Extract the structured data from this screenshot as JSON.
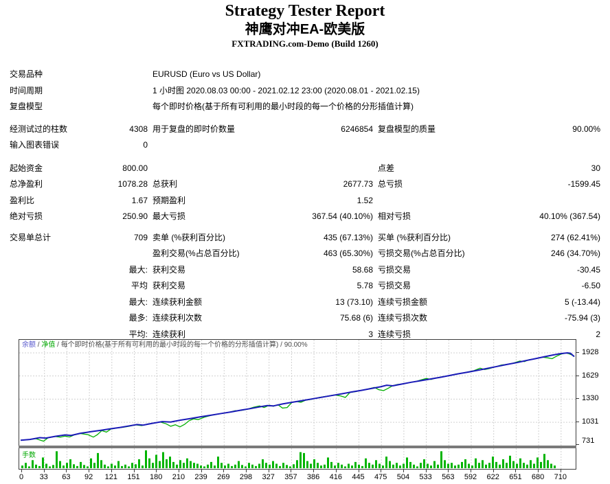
{
  "header": {
    "title": "Strategy Tester Report",
    "subtitle": "神鹰对冲EA-欧美版",
    "server": "FXTRADING.com-Demo (Build 1260)"
  },
  "stats": {
    "rows": [
      {
        "type": "wide",
        "l1": "交易品种",
        "v1": "EURUSD (Euro vs US Dollar)"
      },
      {
        "type": "wide",
        "l1": "时间周期",
        "v1": "1 小时图 2020.08.03 00:00 - 2021.02.12 23:00 (2020.08.01 - 2021.02.15)"
      },
      {
        "type": "wide",
        "l1": "复盘模型",
        "v1": "每个即时价格(基于所有可利用的最小时段的每一个价格的分形插值计算)"
      },
      {
        "type": "gap",
        "h": 9
      },
      {
        "type": "row",
        "l1": "经测试过的柱数",
        "v1": "4308",
        "l2": "用于复盘的即时价数量",
        "v2": "6246854",
        "l3": "复盘模型的质量",
        "v3": "90.00%"
      },
      {
        "type": "row",
        "l1": "输入图表错误",
        "v1": "0",
        "l2": "",
        "v2": "",
        "l3": "",
        "v3": ""
      },
      {
        "type": "gap",
        "h": 10
      },
      {
        "type": "row",
        "l1": "起始资金",
        "v1": "800.00",
        "l2": "",
        "v2": "",
        "l3": "点差",
        "v3": "30"
      },
      {
        "type": "row",
        "l1": "总净盈利",
        "v1": "1078.28",
        "l2": "总获利",
        "v2": "2677.73",
        "l3": "总亏损",
        "v3": "-1599.45"
      },
      {
        "type": "row",
        "l1": "盈利比",
        "v1": "1.67",
        "l2": "预期盈利",
        "v2": "1.52",
        "l3": "",
        "v3": ""
      },
      {
        "type": "row",
        "l1": "绝对亏损",
        "v1": "250.90",
        "l2": "最大亏损",
        "v2": "367.54 (40.10%)",
        "l3": "相对亏损",
        "v3": "40.10% (367.54)"
      },
      {
        "type": "gap",
        "h": 7
      },
      {
        "type": "row",
        "l1": "交易单总计",
        "v1": "709",
        "l2": "卖单 (%获利百分比)",
        "v2": "435 (67.13%)",
        "l3": "买单 (%获利百分比)",
        "v3": "274 (62.41%)"
      },
      {
        "type": "row",
        "l1": "",
        "v1": "",
        "l2": "盈利交易(%占总百分比)",
        "v2": "463 (65.30%)",
        "l3": "亏损交易(%占总百分比)",
        "v3": "246 (34.70%)"
      },
      {
        "type": "row",
        "l1": "",
        "v1": "最大:",
        "l2": "获利交易",
        "v2": "58.68",
        "l3": "亏损交易",
        "v3": "-30.45"
      },
      {
        "type": "row",
        "l1": "",
        "v1": "平均",
        "l2": "获利交易",
        "v2": "5.78",
        "l3": "亏损交易",
        "v3": "-6.50"
      },
      {
        "type": "row",
        "l1": "",
        "v1": "最大:",
        "l2": "连续获利金额",
        "v2": "13 (73.10)",
        "l3": "连续亏损金额",
        "v3": "5 (-13.44)"
      },
      {
        "type": "row",
        "l1": "",
        "v1": "最多:",
        "l2": "连续获利次数",
        "v2": "75.68 (6)",
        "l3": "连续亏损次数",
        "v3": "-75.94 (3)"
      },
      {
        "type": "row",
        "l1": "",
        "v1": "平均:",
        "l2": "连续获利",
        "v2": "3",
        "l3": "连续亏损",
        "v3": "2"
      }
    ]
  },
  "chart_data": {
    "type": "line",
    "main": {
      "legend_balance": "余额",
      "legend_equity": "净值",
      "legend_model": "每个即时价格(基于所有可利用的最小时段的每一个价格的分形插值计算)",
      "legend_quality": "90.00%",
      "legend_sep": " / ",
      "balance_color": "#1a1ab8",
      "equity_color": "#00ae00",
      "grid_color": "#d0d0d0",
      "y_ticks": [
        1928,
        1629,
        1330,
        1031,
        731
      ],
      "x_ticks": [
        0,
        33,
        63,
        92,
        121,
        151,
        180,
        210,
        239,
        269,
        298,
        327,
        357,
        386,
        416,
        445,
        475,
        504,
        533,
        563,
        592,
        622,
        651,
        680,
        710
      ],
      "y_range": [
        731,
        2096
      ],
      "x_range": [
        0,
        723
      ],
      "balance_points": [
        [
          0,
          800
        ],
        [
          12,
          810
        ],
        [
          25,
          833
        ],
        [
          33,
          828
        ],
        [
          45,
          850
        ],
        [
          58,
          868
        ],
        [
          66,
          862
        ],
        [
          78,
          890
        ],
        [
          92,
          910
        ],
        [
          105,
          928
        ],
        [
          118,
          948
        ],
        [
          130,
          965
        ],
        [
          142,
          985
        ],
        [
          152,
          1002
        ],
        [
          160,
          995
        ],
        [
          172,
          1018
        ],
        [
          185,
          1040
        ],
        [
          196,
          1035
        ],
        [
          208,
          1058
        ],
        [
          222,
          1080
        ],
        [
          235,
          1102
        ],
        [
          248,
          1122
        ],
        [
          262,
          1145
        ],
        [
          275,
          1165
        ],
        [
          288,
          1188
        ],
        [
          300,
          1208
        ],
        [
          312,
          1230
        ],
        [
          322,
          1248
        ],
        [
          330,
          1242
        ],
        [
          342,
          1268
        ],
        [
          355,
          1290
        ],
        [
          368,
          1312
        ],
        [
          380,
          1332
        ],
        [
          395,
          1358
        ],
        [
          408,
          1380
        ],
        [
          420,
          1400
        ],
        [
          432,
          1422
        ],
        [
          445,
          1444
        ],
        [
          458,
          1468
        ],
        [
          470,
          1490
        ],
        [
          478,
          1510
        ],
        [
          486,
          1502
        ],
        [
          498,
          1525
        ],
        [
          510,
          1548
        ],
        [
          522,
          1568
        ],
        [
          535,
          1590
        ],
        [
          548,
          1612
        ],
        [
          560,
          1635
        ],
        [
          572,
          1658
        ],
        [
          585,
          1680
        ],
        [
          598,
          1705
        ],
        [
          610,
          1728
        ],
        [
          622,
          1752
        ],
        [
          635,
          1778
        ],
        [
          648,
          1802
        ],
        [
          660,
          1828
        ],
        [
          672,
          1852
        ],
        [
          684,
          1878
        ],
        [
          695,
          1900
        ],
        [
          705,
          1918
        ],
        [
          714,
          1928
        ],
        [
          718,
          1922
        ],
        [
          723,
          1880
        ]
      ],
      "equity_points": [
        [
          0,
          798
        ],
        [
          10,
          806
        ],
        [
          20,
          820
        ],
        [
          26,
          800
        ],
        [
          30,
          788
        ],
        [
          36,
          832
        ],
        [
          45,
          848
        ],
        [
          52,
          840
        ],
        [
          58,
          852
        ],
        [
          64,
          842
        ],
        [
          70,
          868
        ],
        [
          78,
          886
        ],
        [
          88,
          872
        ],
        [
          95,
          840
        ],
        [
          100,
          870
        ],
        [
          106,
          924
        ],
        [
          112,
          905
        ],
        [
          118,
          944
        ],
        [
          126,
          958
        ],
        [
          134,
          968
        ],
        [
          142,
          980
        ],
        [
          150,
          998
        ],
        [
          158,
          988
        ],
        [
          166,
          1010
        ],
        [
          174,
          1020
        ],
        [
          182,
          1036
        ],
        [
          190,
          1012
        ],
        [
          196,
          980
        ],
        [
          202,
          1000
        ],
        [
          208,
          972
        ],
        [
          214,
          1004
        ],
        [
          220,
          1052
        ],
        [
          226,
          1076
        ],
        [
          232,
          1066
        ],
        [
          240,
          1098
        ],
        [
          248,
          1118
        ],
        [
          256,
          1134
        ],
        [
          264,
          1148
        ],
        [
          272,
          1160
        ],
        [
          280,
          1180
        ],
        [
          288,
          1184
        ],
        [
          296,
          1200
        ],
        [
          304,
          1226
        ],
        [
          312,
          1242
        ],
        [
          318,
          1222
        ],
        [
          325,
          1252
        ],
        [
          330,
          1238
        ],
        [
          336,
          1258
        ],
        [
          342,
          1215
        ],
        [
          348,
          1222
        ],
        [
          354,
          1286
        ],
        [
          360,
          1300
        ],
        [
          366,
          1290
        ],
        [
          372,
          1316
        ],
        [
          380,
          1328
        ],
        [
          390,
          1352
        ],
        [
          400,
          1368
        ],
        [
          410,
          1385
        ],
        [
          418,
          1372
        ],
        [
          424,
          1352
        ],
        [
          430,
          1416
        ],
        [
          438,
          1428
        ],
        [
          446,
          1446
        ],
        [
          454,
          1462
        ],
        [
          462,
          1482
        ],
        [
          468,
          1452
        ],
        [
          474,
          1440
        ],
        [
          480,
          1470
        ],
        [
          486,
          1505
        ],
        [
          492,
          1520
        ],
        [
          500,
          1528
        ],
        [
          508,
          1544
        ],
        [
          516,
          1558
        ],
        [
          524,
          1582
        ],
        [
          530,
          1598
        ],
        [
          536,
          1585
        ],
        [
          544,
          1608
        ],
        [
          552,
          1622
        ],
        [
          560,
          1632
        ],
        [
          568,
          1654
        ],
        [
          576,
          1664
        ],
        [
          584,
          1682
        ],
        [
          592,
          1698
        ],
        [
          600,
          1730
        ],
        [
          606,
          1712
        ],
        [
          612,
          1725
        ],
        [
          620,
          1748
        ],
        [
          628,
          1772
        ],
        [
          636,
          1780
        ],
        [
          644,
          1798
        ],
        [
          652,
          1822
        ],
        [
          658,
          1815
        ],
        [
          664,
          1840
        ],
        [
          670,
          1848
        ],
        [
          676,
          1862
        ],
        [
          682,
          1872
        ],
        [
          688,
          1864
        ],
        [
          694,
          1852
        ],
        [
          700,
          1886
        ],
        [
          706,
          1912
        ],
        [
          712,
          1925
        ],
        [
          716,
          1916
        ],
        [
          720,
          1900
        ],
        [
          723,
          1878
        ]
      ]
    },
    "lots": {
      "label": "手数",
      "color": "#00b400",
      "bars": [
        0.15,
        0.3,
        0.1,
        0.45,
        0.2,
        0.12,
        0.6,
        0.25,
        0.1,
        0.18,
        0.95,
        0.4,
        0.15,
        0.3,
        0.5,
        0.22,
        0.12,
        0.35,
        0.18,
        0.1,
        0.55,
        0.3,
        0.85,
        0.45,
        0.2,
        0.1,
        0.25,
        0.15,
        0.4,
        0.12,
        0.2,
        0.1,
        0.3,
        0.22,
        0.5,
        0.15,
        1.0,
        0.55,
        0.3,
        0.75,
        0.4,
        0.9,
        0.5,
        0.65,
        0.35,
        0.2,
        0.45,
        0.3,
        0.55,
        0.4,
        0.3,
        0.25,
        0.15,
        0.1,
        0.2,
        0.35,
        0.15,
        0.65,
        0.3,
        0.15,
        0.25,
        0.12,
        0.2,
        0.4,
        0.18,
        0.1,
        0.3,
        0.2,
        0.12,
        0.25,
        0.5,
        0.3,
        0.2,
        0.4,
        0.25,
        0.12,
        0.3,
        0.18,
        0.1,
        0.22,
        0.45,
        0.9,
        0.85,
        0.4,
        0.25,
        0.5,
        0.3,
        0.15,
        0.2,
        0.6,
        0.35,
        0.15,
        0.3,
        0.2,
        0.1,
        0.25,
        0.15,
        0.35,
        0.2,
        0.12,
        0.55,
        0.3,
        0.2,
        0.45,
        0.25,
        0.15,
        0.65,
        0.4,
        0.2,
        0.3,
        0.15,
        0.25,
        0.6,
        0.35,
        0.2,
        0.1,
        0.3,
        0.5,
        0.25,
        0.15,
        0.4,
        0.2,
        0.95,
        0.45,
        0.25,
        0.3,
        0.15,
        0.2,
        0.35,
        0.5,
        0.25,
        0.15,
        0.55,
        0.3,
        0.45,
        0.2,
        0.3,
        0.65,
        0.35,
        0.2,
        0.5,
        0.3,
        0.7,
        0.4,
        0.25,
        0.55,
        0.3,
        0.2,
        0.45,
        0.25,
        0.6,
        0.35,
        0.8,
        0.45,
        0.25,
        0.15
      ]
    }
  }
}
